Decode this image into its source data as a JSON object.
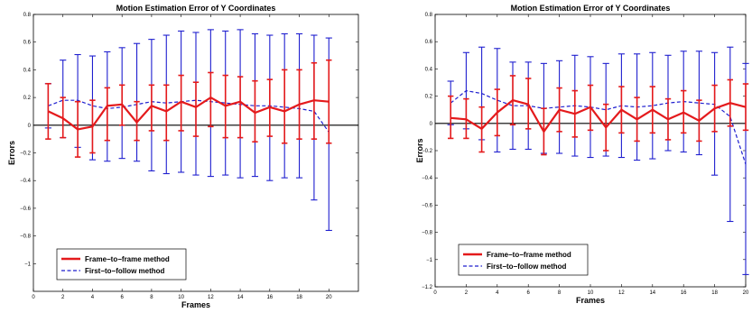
{
  "chart_data": [
    {
      "type": "line",
      "title": "Motion Estimation Error of Y Coordinates",
      "xlabel": "Frames",
      "ylabel": "Errors",
      "xlim": [
        0,
        22
      ],
      "ylim": [
        -1.2,
        0.8
      ],
      "xticks": [
        0,
        2,
        4,
        6,
        8,
        10,
        12,
        14,
        16,
        18,
        20
      ],
      "yticks": [
        -1,
        -0.8,
        -0.6,
        -0.4,
        -0.2,
        0,
        0.2,
        0.4,
        0.6,
        0.8
      ],
      "ytick_labels": [
        "−1",
        "−0.8",
        "−0.6",
        "−0.4",
        "−0.2",
        "0",
        "0.2",
        "0.4",
        "0.6",
        "0.8"
      ],
      "grid": false,
      "legend_position": "lower-left",
      "x": [
        1,
        2,
        3,
        4,
        5,
        6,
        7,
        8,
        9,
        10,
        11,
        12,
        13,
        14,
        15,
        16,
        17,
        18,
        19,
        20
      ],
      "series": [
        {
          "name": "Frame−to−frame method",
          "color": "#e41a1c",
          "style": "solid",
          "values": [
            0.1,
            0.05,
            -0.03,
            -0.01,
            0.14,
            0.15,
            0.02,
            0.14,
            0.1,
            0.17,
            0.13,
            0.2,
            0.14,
            0.17,
            0.09,
            0.13,
            0.1,
            0.15,
            0.18,
            0.17
          ],
          "err_low": [
            -0.1,
            -0.09,
            -0.23,
            -0.2,
            -0.11,
            0.0,
            -0.11,
            -0.04,
            -0.11,
            -0.04,
            -0.08,
            -0.01,
            -0.09,
            -0.09,
            -0.12,
            -0.08,
            -0.13,
            -0.1,
            -0.1,
            -0.13
          ],
          "err_high": [
            0.3,
            0.2,
            0.17,
            0.18,
            0.27,
            0.29,
            0.17,
            0.29,
            0.29,
            0.36,
            0.31,
            0.38,
            0.36,
            0.35,
            0.32,
            0.33,
            0.4,
            0.4,
            0.45,
            0.47
          ]
        },
        {
          "name": "First−to−follow method",
          "color": "#1f1fcf",
          "style": "dashed",
          "values": [
            0.14,
            0.18,
            0.18,
            0.14,
            0.12,
            0.13,
            0.15,
            0.17,
            0.16,
            0.17,
            0.18,
            0.17,
            0.16,
            0.15,
            0.14,
            0.14,
            0.13,
            0.12,
            0.1,
            -0.05
          ],
          "err_low": [
            -0.02,
            -0.09,
            -0.16,
            -0.25,
            -0.26,
            -0.24,
            -0.26,
            -0.33,
            -0.35,
            -0.34,
            -0.36,
            -0.37,
            -0.36,
            -0.38,
            -0.37,
            -0.4,
            -0.38,
            -0.38,
            -0.54,
            -0.76
          ],
          "err_high": [
            0.3,
            0.47,
            0.51,
            0.5,
            0.53,
            0.56,
            0.59,
            0.62,
            0.65,
            0.68,
            0.67,
            0.69,
            0.68,
            0.69,
            0.66,
            0.65,
            0.66,
            0.66,
            0.65,
            0.63
          ]
        }
      ]
    },
    {
      "type": "line",
      "title": "Motion Estimation Error of Y Coordinates",
      "xlabel": "Frames",
      "ylabel": "Errors",
      "xlim": [
        0,
        20
      ],
      "ylim": [
        -1.2,
        0.8
      ],
      "xticks": [
        0,
        2,
        4,
        6,
        8,
        10,
        12,
        14,
        16,
        18,
        20
      ],
      "yticks": [
        -1.2,
        -1,
        -0.8,
        -0.6,
        -0.4,
        -0.2,
        0,
        0.2,
        0.4,
        0.6,
        0.8
      ],
      "ytick_labels": [
        "−1.2",
        "−1",
        "−0.8",
        "−0.6",
        "−0.4",
        "−0.2",
        "0",
        "0.2",
        "0.4",
        "0.6",
        "0.8"
      ],
      "grid": false,
      "legend_position": "lower-left",
      "x": [
        1,
        2,
        3,
        4,
        5,
        6,
        7,
        8,
        9,
        10,
        11,
        12,
        13,
        14,
        15,
        16,
        17,
        18,
        19,
        20
      ],
      "series": [
        {
          "name": "Frame−to−frame method",
          "color": "#e41a1c",
          "style": "solid",
          "values": [
            0.04,
            0.03,
            -0.04,
            0.08,
            0.17,
            0.14,
            -0.06,
            0.1,
            0.07,
            0.12,
            -0.03,
            0.1,
            0.03,
            0.1,
            0.03,
            0.08,
            0.02,
            0.11,
            0.15,
            0.12
          ],
          "err_low": [
            -0.11,
            -0.11,
            -0.21,
            -0.09,
            -0.01,
            -0.04,
            -0.23,
            -0.06,
            -0.1,
            -0.05,
            -0.2,
            -0.07,
            -0.13,
            -0.07,
            -0.12,
            -0.07,
            -0.13,
            -0.06,
            -0.02,
            -0.05
          ],
          "err_high": [
            0.2,
            0.18,
            0.12,
            0.25,
            0.35,
            0.33,
            0.11,
            0.26,
            0.24,
            0.28,
            0.14,
            0.27,
            0.19,
            0.27,
            0.18,
            0.24,
            0.17,
            0.28,
            0.32,
            0.29
          ]
        },
        {
          "name": "First−to−follow method",
          "color": "#1f1fcf",
          "style": "dashed",
          "values": [
            0.15,
            0.24,
            0.22,
            0.17,
            0.13,
            0.13,
            0.11,
            0.12,
            0.13,
            0.12,
            0.1,
            0.13,
            0.12,
            0.13,
            0.15,
            0.16,
            0.15,
            0.14,
            0.05,
            -0.3
          ],
          "err_low": [
            -0.01,
            -0.04,
            -0.12,
            -0.21,
            -0.19,
            -0.19,
            -0.22,
            -0.22,
            -0.24,
            -0.25,
            -0.24,
            -0.25,
            -0.27,
            -0.26,
            -0.2,
            -0.21,
            -0.23,
            -0.38,
            -0.72,
            -1.11
          ],
          "err_high": [
            0.31,
            0.52,
            0.56,
            0.55,
            0.45,
            0.45,
            0.44,
            0.46,
            0.5,
            0.49,
            0.44,
            0.51,
            0.51,
            0.52,
            0.5,
            0.53,
            0.53,
            0.52,
            0.56,
            0.44
          ]
        }
      ]
    }
  ]
}
